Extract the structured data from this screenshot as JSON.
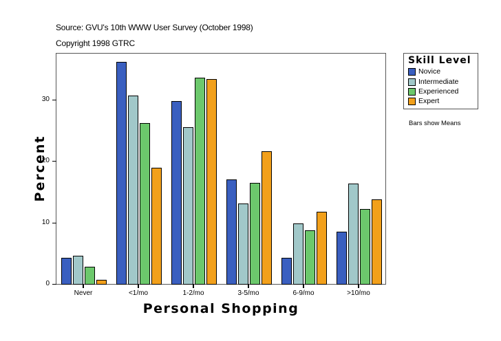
{
  "header": {
    "source": "Source: GVU's 10th WWW User Survey (October 1998)",
    "copyright": "Copyright 1998 GTRC"
  },
  "legend": {
    "title": "Skill Level",
    "items": [
      {
        "label": "Novice",
        "color": "#3a5fc0"
      },
      {
        "label": "Intermediate",
        "color": "#a1c8c9"
      },
      {
        "label": "Experienced",
        "color": "#6cc86c"
      },
      {
        "label": "Expert",
        "color": "#f2a01b"
      }
    ]
  },
  "note": "Bars show Means",
  "chart_data": {
    "type": "bar",
    "title": "Source: GVU's 10th WWW User Survey (October 1998)",
    "subtitle": "Copyright 1998 GTRC",
    "xlabel": "Personal Shopping",
    "ylabel": "Percent",
    "categories": [
      "Never",
      "<1/mo",
      "1-2/mo",
      "3-5/mo",
      "6-9/mo",
      ">10/mo"
    ],
    "series": [
      {
        "name": "Novice",
        "color": "#3a5fc0",
        "values": [
          4.3,
          36.2,
          29.8,
          17.0,
          4.3,
          8.5
        ]
      },
      {
        "name": "Intermediate",
        "color": "#a1c8c9",
        "values": [
          4.6,
          30.7,
          25.5,
          13.1,
          9.9,
          16.4
        ]
      },
      {
        "name": "Experienced",
        "color": "#6cc86c",
        "values": [
          2.8,
          26.2,
          33.6,
          16.5,
          8.7,
          12.2
        ]
      },
      {
        "name": "Expert",
        "color": "#f2a01b",
        "values": [
          0.7,
          18.9,
          33.4,
          21.6,
          11.8,
          13.8
        ]
      }
    ],
    "yticks": [
      0,
      10,
      20,
      30
    ],
    "ylim": [
      0,
      37.6
    ],
    "grid": false,
    "legend_position": "right",
    "legend_title": "Skill Level",
    "annotation": "Bars show Means"
  }
}
